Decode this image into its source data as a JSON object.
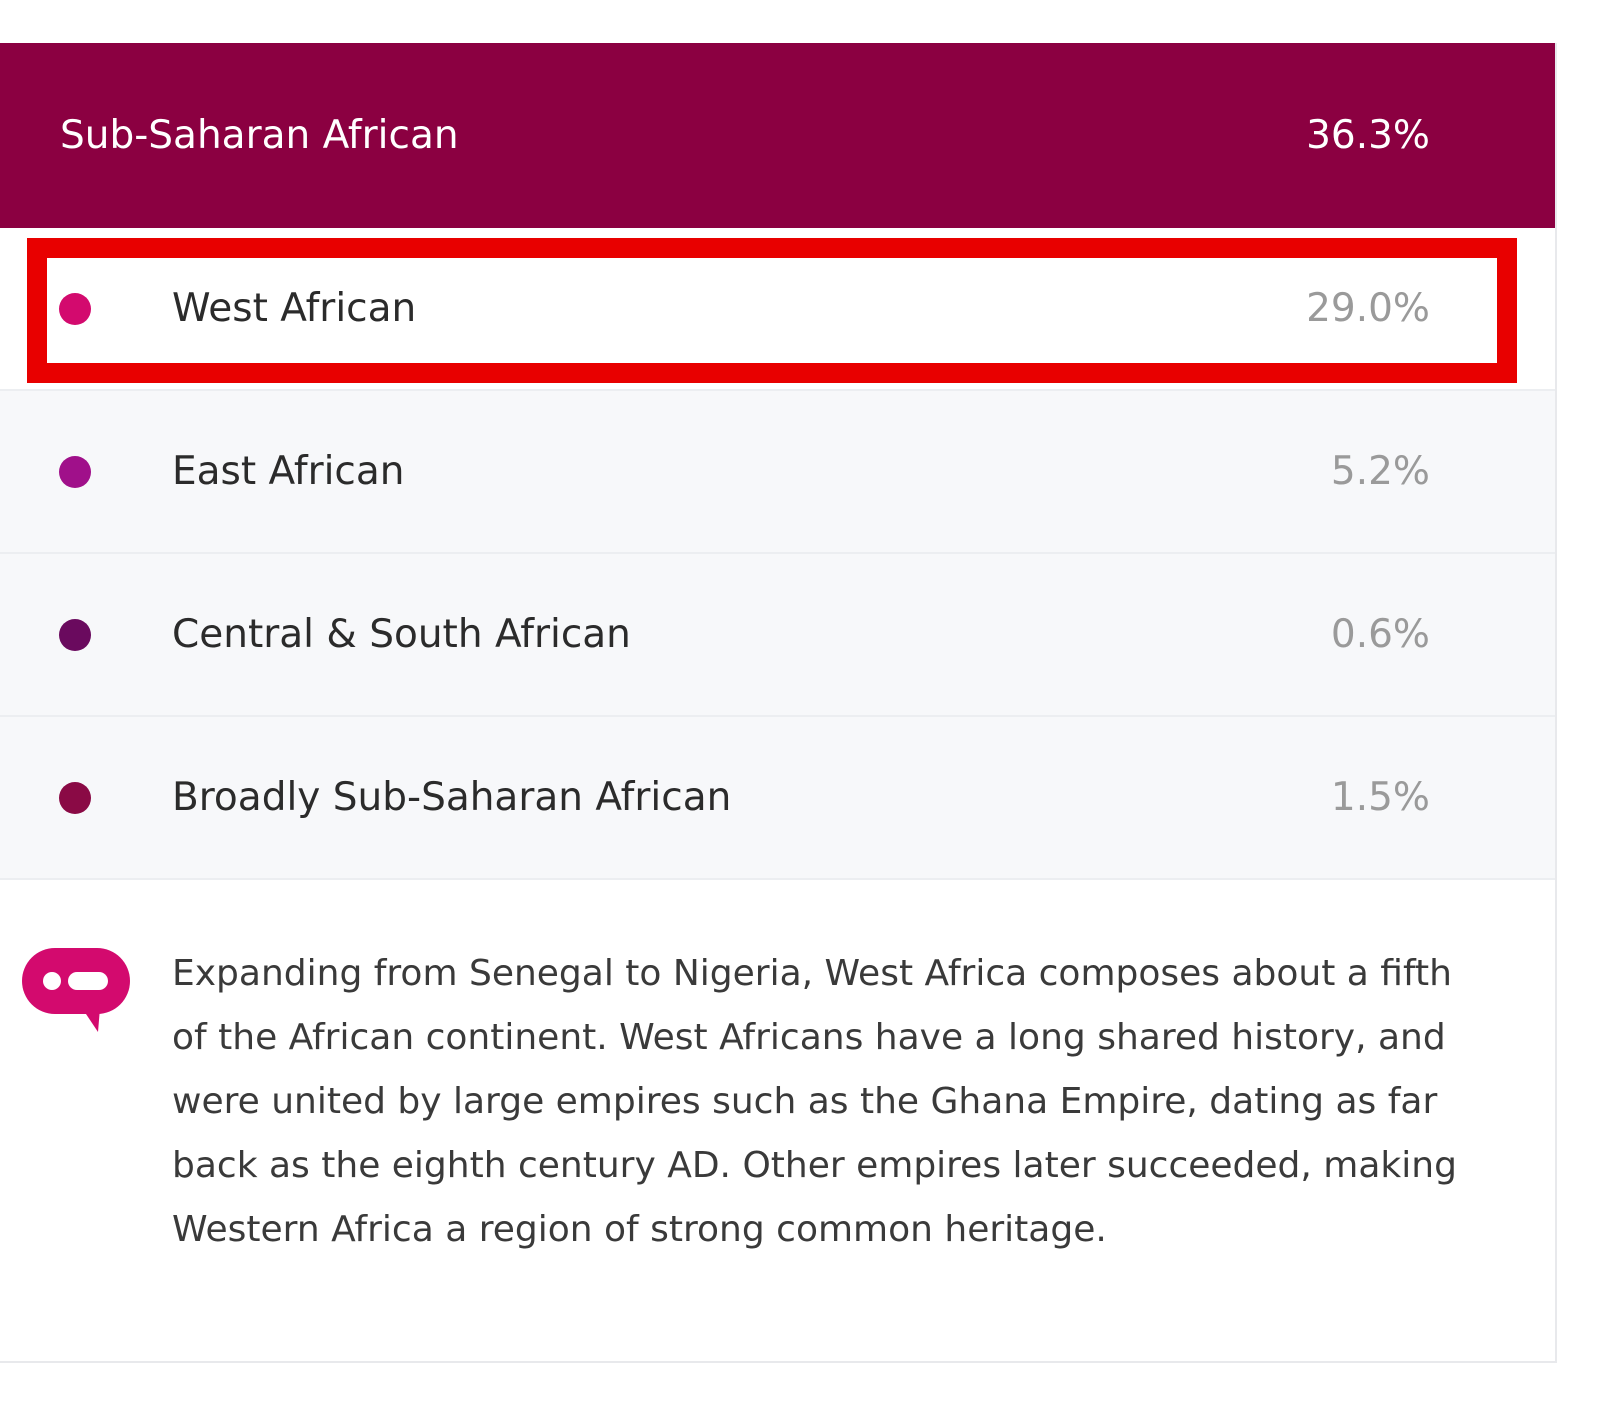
{
  "header": {
    "label": "Sub-Saharan African",
    "percent": "36.3%",
    "color": "#8b0041"
  },
  "rows": [
    {
      "label": "West African",
      "percent": "29.0%",
      "color": "#d30a6e"
    },
    {
      "label": "East African",
      "percent": "5.2%",
      "color": "#a0108a"
    },
    {
      "label": "Central & South African",
      "percent": "0.6%",
      "color": "#6a0a5e"
    },
    {
      "label": "Broadly Sub-Saharan African",
      "percent": "1.5%",
      "color": "#8a0a45"
    }
  ],
  "description": {
    "icon": "speech-bubble-icon",
    "text": "Expanding from Senegal to Nigeria, West Africa composes about a fifth of the African continent. West Africans have a long shared history, and were united by large empires such as the Ghana Empire, dating as far back as the eighth century AD. Other empires later succeeded, making Western Africa a region of strong common heritage."
  },
  "highlight_color": "#e80000"
}
